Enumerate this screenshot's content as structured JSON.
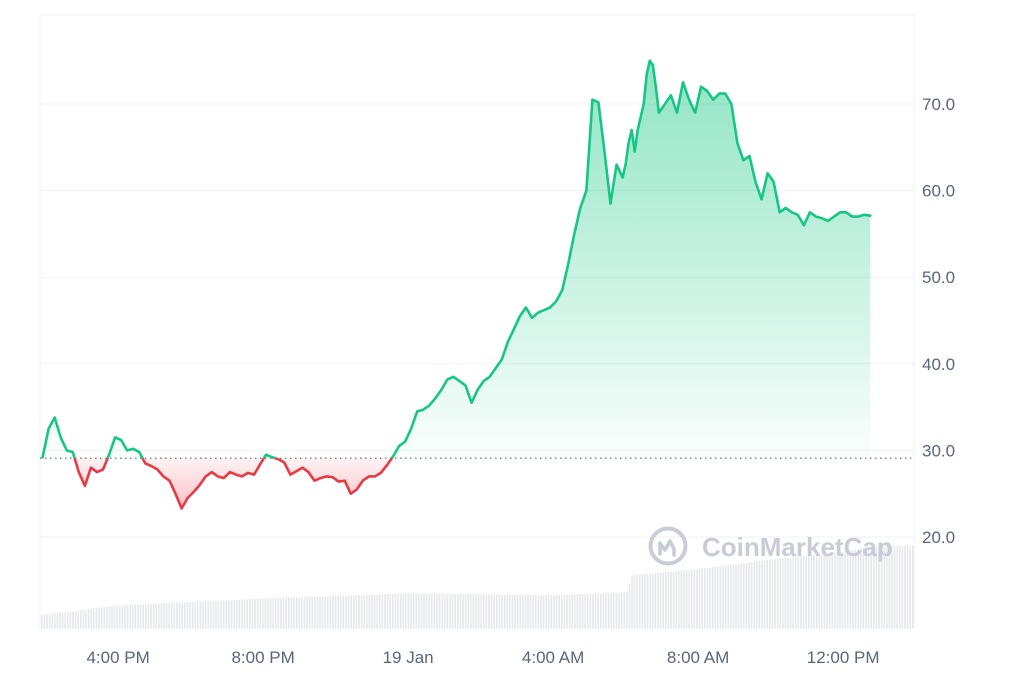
{
  "watermark": {
    "text": "CoinMarketCap"
  },
  "chart_data": {
    "type": "line",
    "title": "",
    "xlabel": "",
    "ylabel": "",
    "ylim": [
      9.3,
      80.7
    ],
    "yticks": [
      "20.0",
      "30.0",
      "40.0",
      "50.0",
      "60.0",
      "70.0"
    ],
    "y_axis_position": "right",
    "grid": "horizontal",
    "baseline": 29.1,
    "baseline_style": "dotted",
    "up_color": "#16c784",
    "down_color": "#ea3943",
    "xticks": [
      {
        "label": "4:00 PM",
        "time": "2025-01-18T16:00"
      },
      {
        "label": "8:00 PM",
        "time": "2025-01-18T20:00"
      },
      {
        "label": "19 Jan",
        "time": "2025-01-19T00:00"
      },
      {
        "label": "4:00 AM",
        "time": "2025-01-19T04:00"
      },
      {
        "label": "8:00 AM",
        "time": "2025-01-19T08:00"
      },
      {
        "label": "12:00 PM",
        "time": "2025-01-19T12:00"
      }
    ],
    "price_series": {
      "x": [
        "2025-01-18T13:55",
        "2025-01-18T14:05",
        "2025-01-18T14:15",
        "2025-01-18T14:25",
        "2025-01-18T14:35",
        "2025-01-18T14:45",
        "2025-01-18T14:55",
        "2025-01-18T15:05",
        "2025-01-18T15:15",
        "2025-01-18T15:25",
        "2025-01-18T15:35",
        "2025-01-18T15:45",
        "2025-01-18T15:55",
        "2025-01-18T16:05",
        "2025-01-18T16:15",
        "2025-01-18T16:25",
        "2025-01-18T16:35",
        "2025-01-18T16:45",
        "2025-01-18T16:55",
        "2025-01-18T17:05",
        "2025-01-18T17:15",
        "2025-01-18T17:25",
        "2025-01-18T17:35",
        "2025-01-18T17:45",
        "2025-01-18T17:55",
        "2025-01-18T18:05",
        "2025-01-18T18:15",
        "2025-01-18T18:25",
        "2025-01-18T18:35",
        "2025-01-18T18:45",
        "2025-01-18T18:55",
        "2025-01-18T19:05",
        "2025-01-18T19:15",
        "2025-01-18T19:25",
        "2025-01-18T19:35",
        "2025-01-18T19:45",
        "2025-01-18T19:55",
        "2025-01-18T20:05",
        "2025-01-18T20:15",
        "2025-01-18T20:25",
        "2025-01-18T20:35",
        "2025-01-18T20:45",
        "2025-01-18T20:55",
        "2025-01-18T21:05",
        "2025-01-18T21:15",
        "2025-01-18T21:25",
        "2025-01-18T21:35",
        "2025-01-18T21:45",
        "2025-01-18T21:55",
        "2025-01-18T22:05",
        "2025-01-18T22:15",
        "2025-01-18T22:25",
        "2025-01-18T22:35",
        "2025-01-18T22:45",
        "2025-01-18T22:55",
        "2025-01-18T23:05",
        "2025-01-18T23:15",
        "2025-01-18T23:25",
        "2025-01-18T23:35",
        "2025-01-18T23:45",
        "2025-01-18T23:55",
        "2025-01-19T00:05",
        "2025-01-19T00:15",
        "2025-01-19T00:25",
        "2025-01-19T00:35",
        "2025-01-19T00:45",
        "2025-01-19T00:55",
        "2025-01-19T01:05",
        "2025-01-19T01:15",
        "2025-01-19T01:25",
        "2025-01-19T01:35",
        "2025-01-19T01:45",
        "2025-01-19T01:55",
        "2025-01-19T02:05",
        "2025-01-19T02:15",
        "2025-01-19T02:25",
        "2025-01-19T02:35",
        "2025-01-19T02:45",
        "2025-01-19T02:55",
        "2025-01-19T03:05",
        "2025-01-19T03:15",
        "2025-01-19T03:25",
        "2025-01-19T03:35",
        "2025-01-19T03:45",
        "2025-01-19T03:55",
        "2025-01-19T04:05",
        "2025-01-19T04:15",
        "2025-01-19T04:25",
        "2025-01-19T04:35",
        "2025-01-19T04:45",
        "2025-01-19T04:55",
        "2025-01-19T05:05",
        "2025-01-19T05:15",
        "2025-01-19T05:25",
        "2025-01-19T05:35",
        "2025-01-19T05:45",
        "2025-01-19T05:55",
        "2025-01-19T06:00",
        "2025-01-19T06:05",
        "2025-01-19T06:10",
        "2025-01-19T06:15",
        "2025-01-19T06:20",
        "2025-01-19T06:25",
        "2025-01-19T06:30",
        "2025-01-19T06:35",
        "2025-01-19T06:40",
        "2025-01-19T06:45",
        "2025-01-19T06:50",
        "2025-01-19T06:55",
        "2025-01-19T07:05",
        "2025-01-19T07:15",
        "2025-01-19T07:25",
        "2025-01-19T07:35",
        "2025-01-19T07:45",
        "2025-01-19T07:55",
        "2025-01-19T08:05",
        "2025-01-19T08:15",
        "2025-01-19T08:25",
        "2025-01-19T08:35",
        "2025-01-19T08:45",
        "2025-01-19T08:55",
        "2025-01-19T09:05",
        "2025-01-19T09:15",
        "2025-01-19T09:25",
        "2025-01-19T09:35",
        "2025-01-19T09:45",
        "2025-01-19T09:55",
        "2025-01-19T10:05",
        "2025-01-19T10:15",
        "2025-01-19T10:25",
        "2025-01-19T10:35",
        "2025-01-19T10:45",
        "2025-01-19T10:55",
        "2025-01-19T11:05",
        "2025-01-19T11:15",
        "2025-01-19T11:25",
        "2025-01-19T11:35",
        "2025-01-19T11:45",
        "2025-01-19T11:55",
        "2025-01-19T12:05",
        "2025-01-19T12:15",
        "2025-01-19T12:25",
        "2025-01-19T12:35",
        "2025-01-19T12:45"
      ],
      "y": [
        29.2,
        32.5,
        33.8,
        31.5,
        30.0,
        29.8,
        27.5,
        25.9,
        28.0,
        27.5,
        27.8,
        29.5,
        31.5,
        31.2,
        30.0,
        30.2,
        29.8,
        28.5,
        28.2,
        27.8,
        27.0,
        26.5,
        25.0,
        23.3,
        24.5,
        25.2,
        26.0,
        27.0,
        27.5,
        27.0,
        26.8,
        27.5,
        27.2,
        27.0,
        27.4,
        27.2,
        28.4,
        29.5,
        29.2,
        29.0,
        28.6,
        27.2,
        27.6,
        28.0,
        27.5,
        26.5,
        26.8,
        27.0,
        26.9,
        26.4,
        26.5,
        25.0,
        25.5,
        26.5,
        27.0,
        27.0,
        27.4,
        28.3,
        29.3,
        30.5,
        31.0,
        32.5,
        34.5,
        34.7,
        35.2,
        36.0,
        37.0,
        38.2,
        38.5,
        38.0,
        37.5,
        35.5,
        37.0,
        38.0,
        38.5,
        39.5,
        40.5,
        42.5,
        44.0,
        45.5,
        46.5,
        45.3,
        45.9,
        46.2,
        46.5,
        47.2,
        48.5,
        51.5,
        55.0,
        58.0,
        60.0,
        70.5,
        70.2,
        64.5,
        58.5,
        63.0,
        61.5,
        63.0,
        65.5,
        67.0,
        64.5,
        67.0,
        68.5,
        70.0,
        73.5,
        75.0,
        74.5,
        72.0,
        69.0,
        70.0,
        71.0,
        69.0,
        72.5,
        70.5,
        69.0,
        72.0,
        71.5,
        70.5,
        71.2,
        71.2,
        70.0,
        65.5,
        63.5,
        64.0,
        61.0,
        59.0,
        62.0,
        61.0,
        57.5,
        58.0,
        57.5,
        57.2,
        56.0,
        57.5,
        57.0,
        56.8,
        56.5,
        57.0,
        57.5,
        57.5,
        57.0,
        57.0,
        57.2,
        57.1
      ]
    },
    "volume_series": {
      "x": [
        "2025-01-18T13:55",
        "2025-01-18T16:00",
        "2025-01-18T20:00",
        "2025-01-19T00:00",
        "2025-01-19T04:00",
        "2025-01-19T06:00",
        "2025-01-19T06:10",
        "2025-01-19T08:00",
        "2025-01-19T10:00",
        "2025-01-19T12:00",
        "2025-01-19T12:55"
      ],
      "y": [
        11.0,
        12.1,
        12.9,
        13.5,
        13.3,
        13.6,
        15.6,
        16.3,
        17.4,
        18.3,
        19.0
      ]
    }
  }
}
